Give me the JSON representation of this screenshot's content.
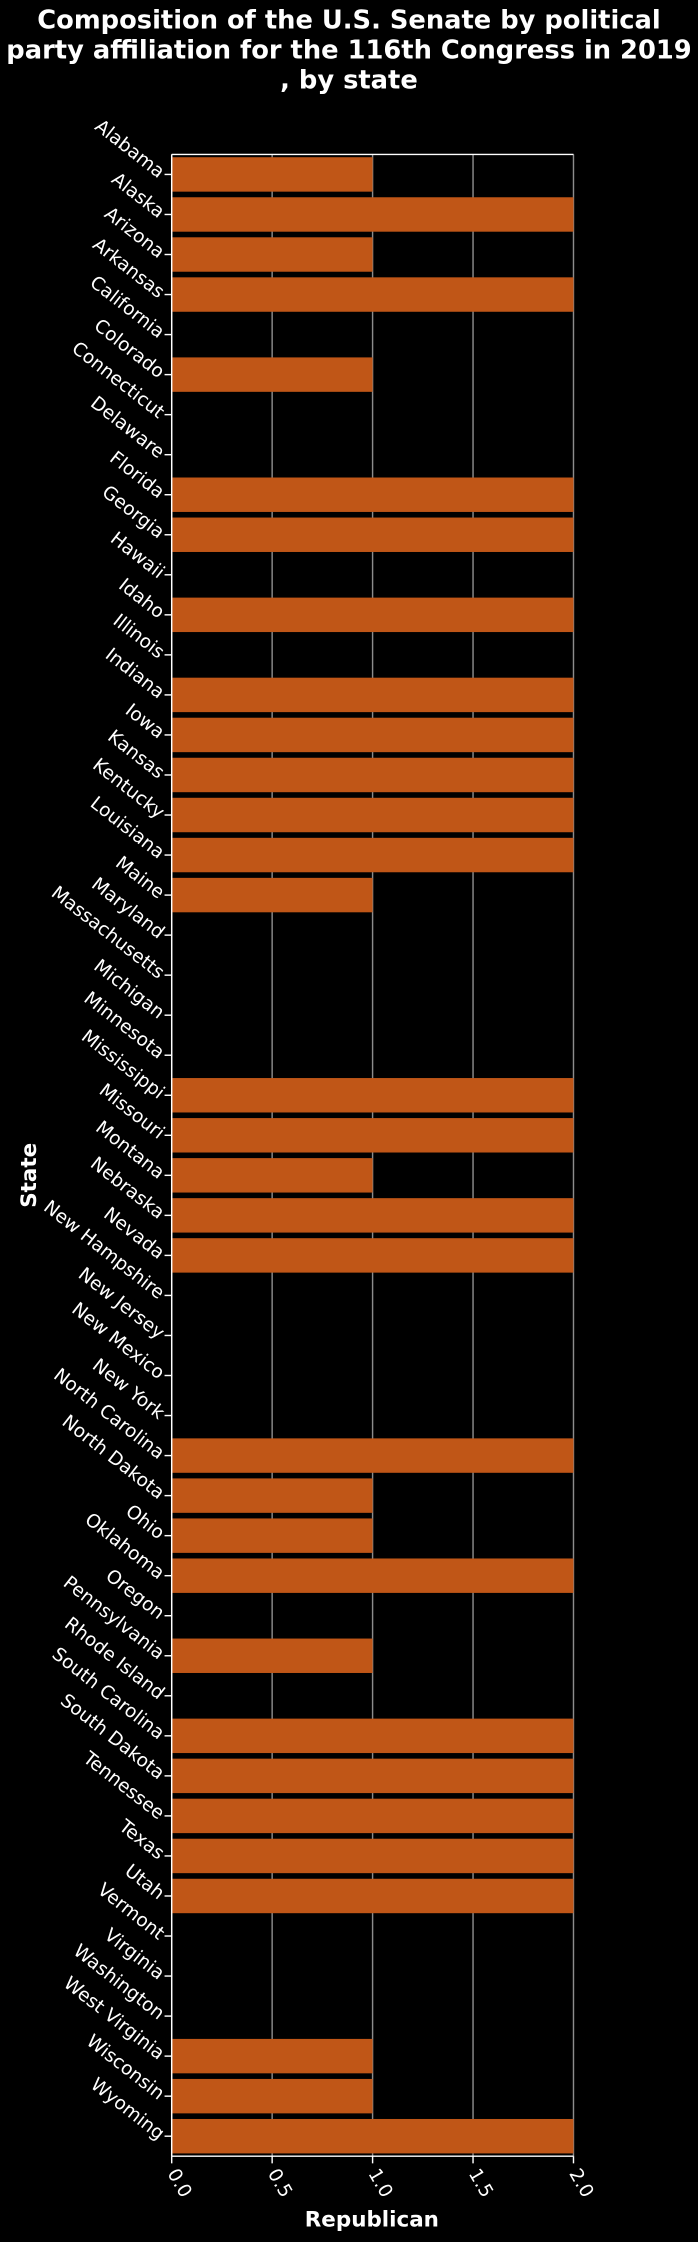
{
  "chart_data": {
    "type": "barh",
    "title": "Composition of the U.S. Senate by political party affiliation for the 116th Congress in 2019 , by state",
    "x_label": "Republican",
    "y_label": "State",
    "color": "#c05617",
    "categories": [
      "Alabama",
      "Alaska",
      "Arizona",
      "Arkansas",
      "California",
      "Colorado",
      "Connecticut",
      "Delaware",
      "Florida",
      "Georgia",
      "Hawaii",
      "Idaho",
      "Illinois",
      "Indiana",
      "Iowa",
      "Kansas",
      "Kentucky",
      "Louisiana",
      "Maine",
      "Maryland",
      "Massachusetts",
      "Michigan",
      "Minnesota",
      "Mississippi",
      "Missouri",
      "Montana",
      "Nebraska",
      "Nevada",
      "New Hampshire",
      "New Jersey",
      "New Mexico",
      "New York",
      "North Carolina",
      "North Dakota",
      "Ohio",
      "Oklahoma",
      "Oregon",
      "Pennsylvania",
      "Rhode Island",
      "South Carolina",
      "South Dakota",
      "Tennessee",
      "Texas",
      "Utah",
      "Vermont",
      "Virginia",
      "Washington",
      "West Virginia",
      "Wisconsin",
      "Wyoming"
    ],
    "values": [
      1,
      2,
      1,
      2,
      0,
      1,
      0,
      0,
      2,
      2,
      0,
      2,
      0,
      2,
      2,
      2,
      2,
      2,
      1,
      0,
      0,
      0,
      0,
      2,
      2,
      1,
      2,
      2,
      0,
      0,
      0,
      0,
      2,
      1,
      1,
      2,
      0,
      1,
      0,
      2,
      2,
      2,
      2,
      2,
      0,
      0,
      0,
      1,
      1,
      2
    ],
    "xlim": [
      0,
      2
    ],
    "xticks": [
      {
        "value": 0,
        "label": "0.0"
      },
      0.5,
      {
        "value": 1,
        "label": "1.0"
      },
      1.5,
      {
        "value": 2,
        "label": "2.0"
      }
    ],
    "grid": true
  }
}
